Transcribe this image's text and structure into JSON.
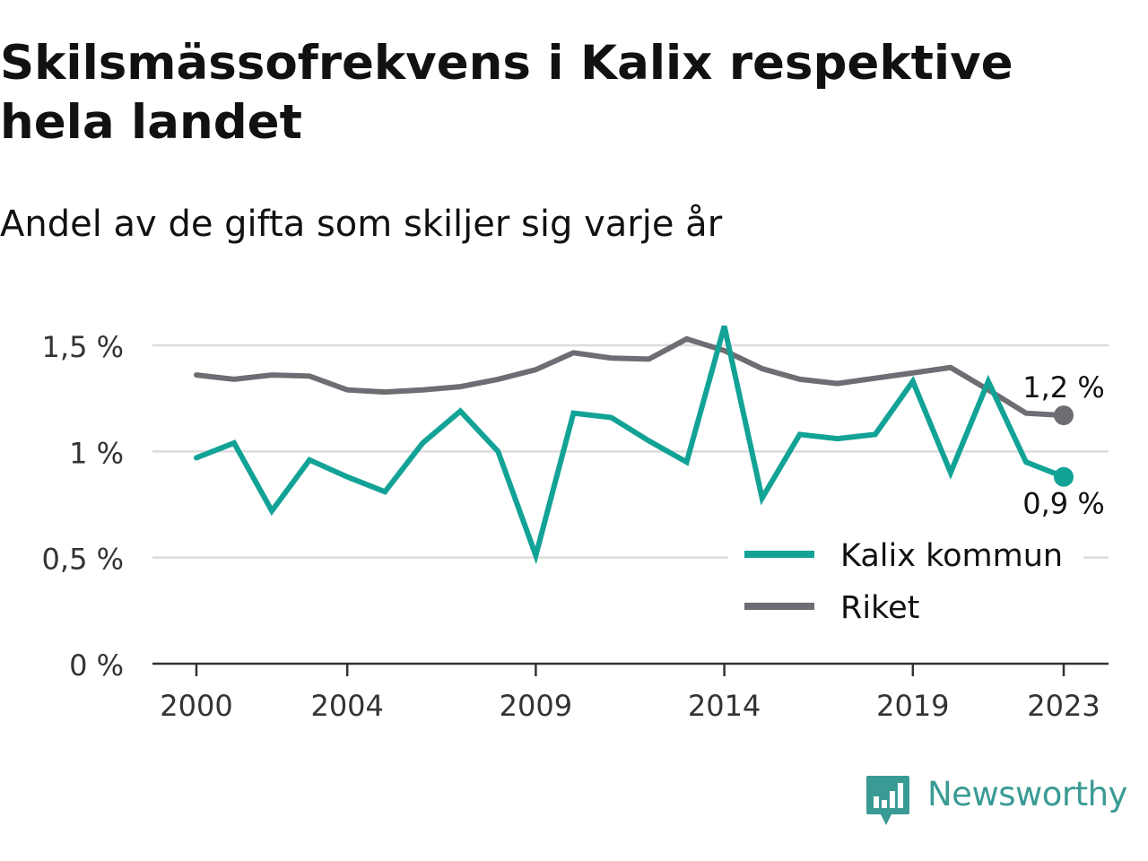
{
  "header": {
    "title": "Skilsmässofrekvens i Kalix respektive hela landet",
    "subtitle": "Andel av de gifta som skiljer sig varje år"
  },
  "brand": {
    "name": "Newsworthy",
    "icon": "newsworthy-logo-icon",
    "color": "#3a9b94"
  },
  "chart_data": {
    "type": "line",
    "title": "Skilsmässofrekvens i Kalix respektive hela landet",
    "subtitle": "Andel av de gifta som skiljer sig varje år",
    "xlabel": "",
    "ylabel": "",
    "x": [
      2000,
      2001,
      2002,
      2003,
      2004,
      2005,
      2006,
      2007,
      2008,
      2009,
      2010,
      2011,
      2012,
      2013,
      2014,
      2015,
      2016,
      2017,
      2018,
      2019,
      2020,
      2021,
      2022,
      2023
    ],
    "xticks": [
      2000,
      2004,
      2009,
      2014,
      2019,
      2023
    ],
    "xtick_labels": [
      "2000",
      "2004",
      "2009",
      "2014",
      "2019",
      "2023"
    ],
    "ylim": [
      0,
      1.5
    ],
    "yticks": [
      0,
      0.5,
      1,
      1.5
    ],
    "ytick_labels": [
      "0 %",
      "0,5 %",
      "1 %",
      "1,5 %"
    ],
    "grid": true,
    "legend": "bottom-right",
    "series": [
      {
        "name": "Kalix kommun",
        "color": "#12a396",
        "values": [
          0.97,
          1.04,
          0.72,
          0.96,
          0.88,
          0.81,
          1.04,
          1.19,
          1.0,
          0.51,
          1.18,
          1.16,
          1.05,
          0.95,
          1.59,
          0.78,
          1.08,
          1.06,
          1.08,
          1.33,
          0.9,
          1.33,
          0.95,
          0.88
        ],
        "end_label": "0,9 %"
      },
      {
        "name": "Riket",
        "color": "#6e6d73",
        "values": [
          1.36,
          1.34,
          1.36,
          1.355,
          1.29,
          1.28,
          1.29,
          1.305,
          1.34,
          1.385,
          1.465,
          1.44,
          1.435,
          1.53,
          1.475,
          1.39,
          1.34,
          1.32,
          1.345,
          1.37,
          1.395,
          1.29,
          1.18,
          1.17
        ],
        "end_label": "1,2 %"
      }
    ]
  }
}
